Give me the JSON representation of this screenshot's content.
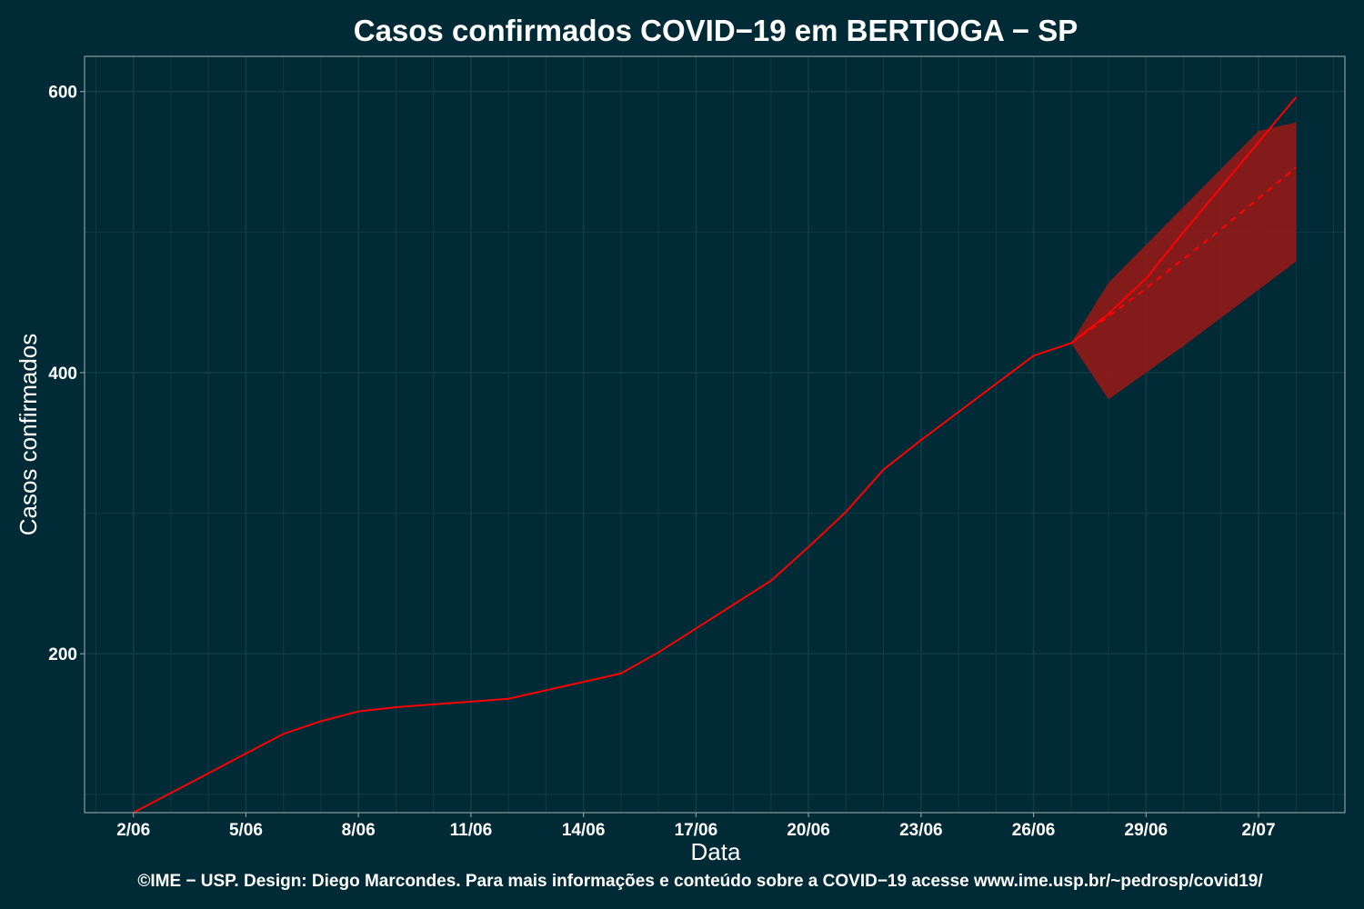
{
  "chart_data": {
    "type": "line",
    "title": "Casos confirmados COVID−19 em BERTIOGA − SP",
    "xlabel": "Data",
    "ylabel": "Casos confirmados",
    "caption": "©IME − USP. Design: Diego Marcondes. Para mais informações e conteúdo sobre a COVID−19 acesse www.ime.usp.br/~pedrosp/covid19/",
    "x_ticks": [
      "2/06",
      "5/06",
      "8/06",
      "11/06",
      "14/06",
      "17/06",
      "20/06",
      "23/06",
      "26/06",
      "29/06",
      "2/07"
    ],
    "y_ticks": [
      200,
      400,
      600
    ],
    "xlim": [
      "2020-06-02",
      "2020-07-03"
    ],
    "ylim": [
      87,
      625
    ],
    "grid": true,
    "colors": {
      "background": "#002b36",
      "grid": "#0f3b47",
      "frame": "#8a9a9e",
      "series": "#ff0000",
      "band": "#8b1a1a",
      "text": "#ffffff"
    },
    "series": [
      {
        "style": "solid",
        "x": [
          "2020-06-02",
          "2020-06-03",
          "2020-06-04",
          "2020-06-05",
          "2020-06-06",
          "2020-06-07",
          "2020-06-08",
          "2020-06-09",
          "2020-06-10",
          "2020-06-11",
          "2020-06-12",
          "2020-06-13",
          "2020-06-14",
          "2020-06-15",
          "2020-06-16",
          "2020-06-17",
          "2020-06-18",
          "2020-06-19",
          "2020-06-20",
          "2020-06-21",
          "2020-06-22",
          "2020-06-23",
          "2020-06-24",
          "2020-06-25",
          "2020-06-26",
          "2020-06-27",
          "2020-06-28",
          "2020-06-29",
          "2020-06-30",
          "2020-07-01",
          "2020-07-02",
          "2020-07-03"
        ],
        "y": [
          87,
          101,
          115,
          129,
          143,
          152,
          159,
          162,
          164,
          166,
          168,
          174,
          180,
          186,
          201,
          218,
          235,
          252,
          276,
          301,
          331,
          352,
          372,
          392,
          412,
          421,
          442,
          467,
          500,
          532,
          564,
          596
        ]
      },
      {
        "style": "dashed",
        "x": [
          "2020-06-27",
          "2020-06-28",
          "2020-06-29",
          "2020-06-30",
          "2020-07-01",
          "2020-07-02",
          "2020-07-03"
        ],
        "y": [
          421,
          440,
          460,
          481,
          502,
          524,
          546
        ]
      }
    ],
    "band": {
      "x": [
        "2020-06-27",
        "2020-06-28",
        "2020-06-29",
        "2020-06-30",
        "2020-07-01",
        "2020-07-02",
        "2020-07-03"
      ],
      "lower": [
        421,
        381,
        400,
        419,
        439,
        459,
        479
      ],
      "upper": [
        421,
        464,
        491,
        518,
        545,
        572,
        578
      ]
    }
  }
}
